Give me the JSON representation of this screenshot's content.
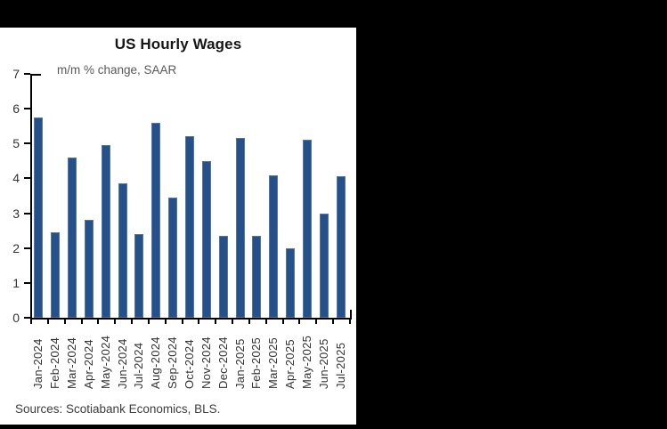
{
  "window": {
    "background_color": "#000000",
    "panel_color": "#ffffff"
  },
  "chart_data": {
    "type": "bar",
    "title": "US Hourly Wages",
    "subtitle": "m/m % change, SAAR",
    "source": "Sources: Scotiabank Economics, BLS.",
    "categories": [
      "Jan-2024",
      "Feb-2024",
      "Mar-2024",
      "Apr-2024",
      "May-2024",
      "Jun-2024",
      "Jul-2024",
      "Aug-2024",
      "Sep-2024",
      "Oct-2024",
      "Nov-2024",
      "Dec-2024",
      "Jan-2025",
      "Feb-2025",
      "Mar-2025",
      "Apr-2025",
      "May-2025",
      "Jun-2025",
      "Jul-2025"
    ],
    "values": [
      5.75,
      2.45,
      4.6,
      2.8,
      4.95,
      3.85,
      2.4,
      5.6,
      3.45,
      5.2,
      4.5,
      2.35,
      5.15,
      2.35,
      4.1,
      2.0,
      5.1,
      3.0,
      4.05
    ],
    "xlabel": "",
    "ylabel": "",
    "ylim": [
      0,
      7
    ],
    "yticks": [
      0,
      1,
      2,
      3,
      4,
      5,
      6,
      7
    ],
    "grid": false,
    "legend": null,
    "bar_color": "#25508A",
    "axis_color": "#000000"
  }
}
